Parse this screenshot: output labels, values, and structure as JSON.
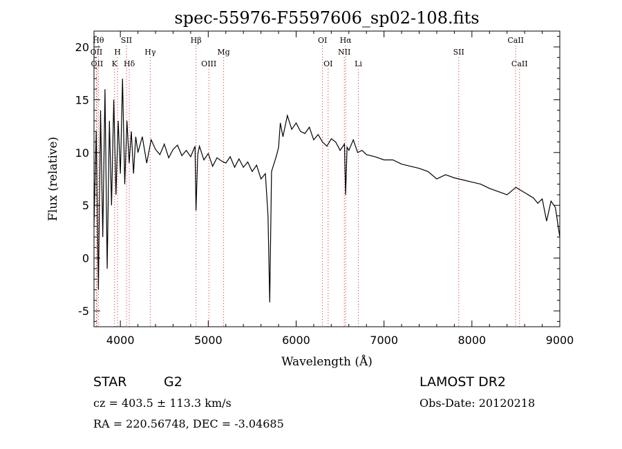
{
  "chart_data": {
    "type": "line",
    "title": "spec-55976-F5597606_sp02-108.fits",
    "xlabel": "Wavelength (Å)",
    "ylabel": "Flux (relative)",
    "xlim": [
      3700,
      9000
    ],
    "ylim": [
      -6.5,
      21.5
    ],
    "xticks": [
      4000,
      5000,
      6000,
      7000,
      8000,
      9000
    ],
    "yticks": [
      -5,
      0,
      5,
      10,
      15,
      20
    ],
    "series": [
      {
        "color": "#000000",
        "x": [
          3700,
          3725,
          3750,
          3775,
          3800,
          3825,
          3850,
          3875,
          3900,
          3925,
          3950,
          3975,
          4000,
          4025,
          4050,
          4075,
          4100,
          4125,
          4150,
          4175,
          4200,
          4250,
          4300,
          4350,
          4400,
          4450,
          4500,
          4550,
          4600,
          4650,
          4700,
          4750,
          4800,
          4850,
          4861,
          4880,
          4900,
          4950,
          5000,
          5050,
          5100,
          5150,
          5200,
          5250,
          5300,
          5350,
          5400,
          5450,
          5500,
          5550,
          5600,
          5650,
          5680,
          5700,
          5720,
          5750,
          5780,
          5800,
          5820,
          5850,
          5900,
          5950,
          6000,
          6050,
          6100,
          6150,
          6200,
          6250,
          6300,
          6350,
          6400,
          6450,
          6500,
          6550,
          6563,
          6580,
          6600,
          6650,
          6700,
          6750,
          6800,
          6900,
          7000,
          7100,
          7200,
          7300,
          7400,
          7500,
          7600,
          7700,
          7800,
          7900,
          8000,
          8100,
          8200,
          8300,
          8400,
          8500,
          8600,
          8700,
          8750,
          8800,
          8850,
          8900,
          8950,
          9000
        ],
        "y": [
          3.0,
          12.0,
          -3.0,
          14.0,
          2.0,
          16.0,
          -1.0,
          13.0,
          5.0,
          15.0,
          6.0,
          13.0,
          8.0,
          17.0,
          7.0,
          13.0,
          9.0,
          12.0,
          8.0,
          11.5,
          10.0,
          11.5,
          9.0,
          11.2,
          10.3,
          9.8,
          10.8,
          9.5,
          10.3,
          10.7,
          9.7,
          10.2,
          9.6,
          10.6,
          4.5,
          9.8,
          10.6,
          9.3,
          9.9,
          8.7,
          9.5,
          9.2,
          9.0,
          9.6,
          8.6,
          9.4,
          8.6,
          9.1,
          8.2,
          8.8,
          7.5,
          8.0,
          4.0,
          -4.2,
          8.2,
          9.0,
          9.8,
          10.5,
          12.8,
          11.5,
          13.5,
          12.2,
          12.8,
          12.0,
          11.8,
          12.4,
          11.2,
          11.7,
          11.0,
          10.6,
          11.3,
          11.0,
          10.2,
          10.8,
          6.0,
          10.5,
          10.2,
          11.2,
          10.0,
          10.2,
          9.8,
          9.6,
          9.3,
          9.3,
          8.9,
          8.7,
          8.5,
          8.2,
          7.5,
          7.9,
          7.6,
          7.4,
          7.2,
          7.0,
          6.6,
          6.3,
          6.0,
          6.7,
          6.2,
          5.7,
          5.2,
          5.6,
          3.5,
          5.4,
          4.8,
          2.0
        ]
      }
    ],
    "line_markers": [
      {
        "x": 3727,
        "label": "OII",
        "row": 2
      },
      {
        "x": 3734,
        "label": "OII",
        "row": 3
      },
      {
        "x": 3750,
        "label": "Hθ",
        "row": 1
      },
      {
        "x": 3934,
        "label": "K",
        "row": 3
      },
      {
        "x": 3968,
        "label": "H",
        "row": 2
      },
      {
        "x": 4070,
        "label": "SII",
        "row": 1
      },
      {
        "x": 4102,
        "label": "Hδ",
        "row": 3
      },
      {
        "x": 4340,
        "label": "Hγ",
        "row": 2
      },
      {
        "x": 4861,
        "label": "Hβ",
        "row": 1
      },
      {
        "x": 5007,
        "label": "OIII",
        "row": 3
      },
      {
        "x": 5175,
        "label": "Mg",
        "row": 2
      },
      {
        "x": 6300,
        "label": "OI",
        "row": 1
      },
      {
        "x": 6364,
        "label": "OI",
        "row": 3
      },
      {
        "x": 6548,
        "label": "NII",
        "row": 2
      },
      {
        "x": 6563,
        "label": "Hα",
        "row": 1
      },
      {
        "x": 6708,
        "label": "Li",
        "row": 3
      },
      {
        "x": 7850,
        "label": "SII",
        "row": 2
      },
      {
        "x": 8498,
        "label": "CaII",
        "row": 1
      },
      {
        "x": 8542,
        "label": "CaII",
        "row": 3
      }
    ]
  },
  "info": {
    "object_class": "STAR",
    "subclass": "G2",
    "survey": "LAMOST DR2",
    "velocity": "cz = 403.5 ± 113.3 km/s",
    "obs_date": "Obs-Date: 20120218",
    "coords": "RA = 220.56748, DEC =  -3.04685"
  }
}
